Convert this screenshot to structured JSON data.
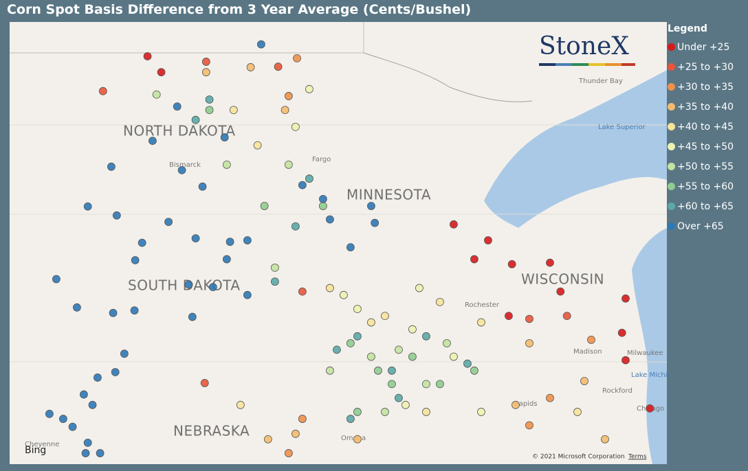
{
  "map": {
    "title": "Corn Spot Basis Difference from 3 Year Average (Cents/Bushel)",
    "legend_title": "Legend",
    "logo": "StoneX",
    "provider": "Bing",
    "copyright": "© 2021 Microsoft Corporation",
    "terms": "Terms",
    "lonlim": [
      -105.29,
      -87.13
    ],
    "latlim": [
      40.78,
      49.67
    ],
    "labels": [
      "NORTH DAKOTA",
      "SOUTH DAKOTA",
      "MINNESOTA",
      "WISCONSIN",
      "NEBRASKA",
      "Bismarck",
      "Fargo",
      "Thunder Bay",
      "Lake Superior",
      "Rochester",
      "Madison",
      "Milwaukee",
      "Lake Michi",
      "Rockford",
      "Rapids",
      "Chicago",
      "Cheyenne",
      "Omaha"
    ],
    "legend": [
      {
        "label": "Under +25",
        "color": "#d7191c",
        "points": [
          [
            -101.48,
            48.98
          ],
          [
            -101.1,
            48.66
          ],
          [
            -93.02,
            45.6
          ],
          [
            -92.45,
            44.9
          ],
          [
            -92.07,
            45.28
          ],
          [
            -91.41,
            44.8
          ],
          [
            -90.36,
            44.83
          ],
          [
            -90.07,
            44.25
          ],
          [
            -88.27,
            44.11
          ],
          [
            -88.37,
            43.42
          ],
          [
            -91.5,
            43.76
          ],
          [
            -88.27,
            42.87
          ],
          [
            -87.6,
            41.9
          ]
        ]
      },
      {
        "label": "+25 to +30",
        "color": "#e8553a",
        "points": [
          [
            -99.86,
            48.87
          ],
          [
            -97.87,
            48.77
          ],
          [
            -102.71,
            48.28
          ],
          [
            -90.93,
            43.7
          ],
          [
            -89.89,
            43.76
          ],
          [
            -99.9,
            42.41
          ],
          [
            -97.2,
            44.25
          ]
        ]
      },
      {
        "label": "+30 to +35",
        "color": "#f0904a",
        "points": [
          [
            -97.35,
            48.94
          ],
          [
            -97.58,
            48.18
          ],
          [
            -89.22,
            43.28
          ],
          [
            -90.36,
            42.11
          ],
          [
            -90.93,
            41.56
          ],
          [
            -97.2,
            41.69
          ],
          [
            -97.58,
            41.0
          ]
        ]
      },
      {
        "label": "+35 to +40",
        "color": "#f4bb6e",
        "points": [
          [
            -98.63,
            48.76
          ],
          [
            -99.86,
            48.66
          ],
          [
            -97.68,
            47.9
          ],
          [
            -89.41,
            42.45
          ],
          [
            -91.31,
            41.97
          ],
          [
            -98.15,
            41.28
          ],
          [
            -97.39,
            41.39
          ],
          [
            -95.68,
            41.28
          ],
          [
            -88.84,
            41.28
          ],
          [
            -90.93,
            43.21
          ]
        ]
      },
      {
        "label": "+40 to +45",
        "color": "#f7e39a",
        "points": [
          [
            -99.1,
            47.9
          ],
          [
            -98.44,
            47.19
          ],
          [
            -96.44,
            44.32
          ],
          [
            -94.92,
            43.76
          ],
          [
            -93.4,
            44.04
          ],
          [
            -92.26,
            43.63
          ],
          [
            -93.78,
            41.83
          ],
          [
            -98.91,
            41.97
          ],
          [
            -95.3,
            43.63
          ],
          [
            -89.6,
            41.83
          ]
        ]
      },
      {
        "label": "+45 to +50",
        "color": "#eef2b0",
        "points": [
          [
            -97.01,
            48.32
          ],
          [
            -97.39,
            47.56
          ],
          [
            -95.68,
            43.9
          ],
          [
            -94.16,
            43.49
          ],
          [
            -93.02,
            42.94
          ],
          [
            -94.35,
            41.97
          ],
          [
            -92.26,
            41.83
          ],
          [
            -96.06,
            44.18
          ],
          [
            -93.97,
            44.32
          ]
        ]
      },
      {
        "label": "+50 to +55",
        "color": "#c3e3a0",
        "points": [
          [
            -101.23,
            48.21
          ],
          [
            -99.29,
            46.8
          ],
          [
            -97.58,
            46.8
          ],
          [
            -95.3,
            42.94
          ],
          [
            -94.54,
            43.08
          ],
          [
            -93.78,
            42.39
          ],
          [
            -93.21,
            43.21
          ],
          [
            -94.92,
            41.83
          ],
          [
            -96.44,
            42.66
          ],
          [
            -97.96,
            44.73
          ]
        ]
      },
      {
        "label": "+55 to +60",
        "color": "#8fcc8f",
        "points": [
          [
            -99.77,
            47.9
          ],
          [
            -98.25,
            45.97
          ],
          [
            -96.63,
            45.97
          ],
          [
            -95.87,
            43.21
          ],
          [
            -95.11,
            42.66
          ],
          [
            -94.16,
            42.94
          ],
          [
            -93.4,
            42.39
          ],
          [
            -95.68,
            41.83
          ],
          [
            -92.45,
            42.66
          ],
          [
            -94.73,
            42.39
          ]
        ]
      },
      {
        "label": "+60 to +65",
        "color": "#5aa8a8",
        "points": [
          [
            -99.77,
            48.11
          ],
          [
            -100.15,
            47.7
          ],
          [
            -97.01,
            46.52
          ],
          [
            -96.25,
            43.08
          ],
          [
            -95.68,
            43.35
          ],
          [
            -94.73,
            42.66
          ],
          [
            -93.78,
            43.35
          ],
          [
            -95.87,
            41.69
          ],
          [
            -94.54,
            42.11
          ],
          [
            -97.39,
            45.56
          ],
          [
            -97.96,
            44.45
          ],
          [
            -92.64,
            42.8
          ]
        ]
      },
      {
        "label": "Over +65",
        "color": "#2e78b7",
        "points": [
          [
            -98.34,
            49.22
          ],
          [
            -100.66,
            47.97
          ],
          [
            -101.34,
            47.28
          ],
          [
            -99.35,
            47.35
          ],
          [
            -102.48,
            46.76
          ],
          [
            -100.53,
            46.69
          ],
          [
            -99.96,
            46.36
          ],
          [
            -103.13,
            45.96
          ],
          [
            -102.33,
            45.78
          ],
          [
            -100.9,
            45.65
          ],
          [
            -101.63,
            45.23
          ],
          [
            -101.82,
            44.88
          ],
          [
            -100.15,
            45.32
          ],
          [
            -99.2,
            45.25
          ],
          [
            -98.72,
            45.28
          ],
          [
            -99.29,
            44.9
          ],
          [
            -100.34,
            44.39
          ],
          [
            -99.67,
            44.34
          ],
          [
            -98.72,
            44.18
          ],
          [
            -104.0,
            44.5
          ],
          [
            -103.43,
            43.93
          ],
          [
            -102.43,
            43.82
          ],
          [
            -101.84,
            43.87
          ],
          [
            -100.24,
            43.74
          ],
          [
            -102.12,
            43.0
          ],
          [
            -102.86,
            42.52
          ],
          [
            -102.37,
            42.63
          ],
          [
            -103.24,
            42.18
          ],
          [
            -103.0,
            41.97
          ],
          [
            -104.19,
            41.79
          ],
          [
            -103.81,
            41.69
          ],
          [
            -103.55,
            41.53
          ],
          [
            -103.13,
            41.21
          ],
          [
            -103.19,
            41.0
          ],
          [
            -102.79,
            41.0
          ],
          [
            -97.2,
            46.39
          ],
          [
            -96.63,
            46.11
          ],
          [
            -96.44,
            45.7
          ],
          [
            -95.87,
            45.14
          ],
          [
            -95.3,
            45.97
          ],
          [
            -95.2,
            45.63
          ]
        ]
      }
    ]
  }
}
